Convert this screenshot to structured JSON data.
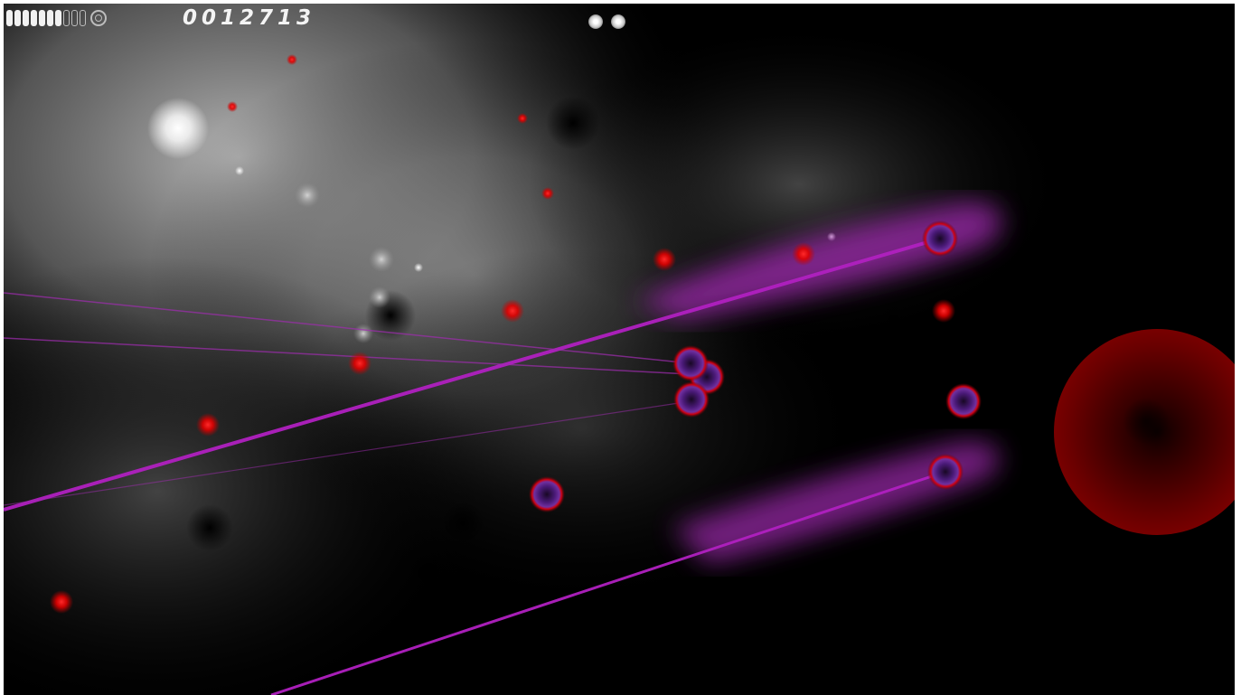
{
  "hud": {
    "score": "0012713",
    "health": {
      "filled": 7,
      "total": 10
    },
    "special_icon": "spiral-icon",
    "lives": 2
  },
  "colors": {
    "background": "#000000",
    "fog": "#b4b4b4",
    "enemy_ring": "#d00010",
    "enemy_core": "#5a2080",
    "laser": "#b020c0",
    "red_orb": "#ff1010",
    "hud_text": "#f4f4f4"
  }
}
